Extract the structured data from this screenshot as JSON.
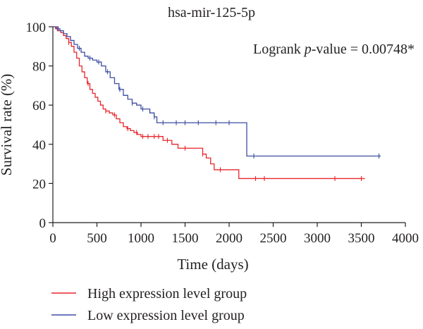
{
  "chart_data": {
    "type": "line",
    "title": "hsa-mir-125-5p",
    "xlabel": "Time (days)",
    "ylabel": "Survival rate (%)",
    "xlim": [
      0,
      4000
    ],
    "ylim": [
      0,
      100
    ],
    "xticks": [
      "0",
      "500",
      "1000",
      "1500",
      "2000",
      "2500",
      "3000",
      "3500",
      "4000"
    ],
    "yticks": [
      "0",
      "20",
      "40",
      "60",
      "80",
      "100"
    ],
    "annotation": {
      "prefix": "Logrank ",
      "p": "p",
      "suffix": "-value = 0.00748*"
    },
    "legend_position": "bottom",
    "series": [
      {
        "name": "High expression level group",
        "color": "#e8262b",
        "steps": [
          [
            0,
            100
          ],
          [
            30,
            99
          ],
          [
            60,
            98
          ],
          [
            90,
            97
          ],
          [
            120,
            95.5
          ],
          [
            150,
            94
          ],
          [
            180,
            92
          ],
          [
            210,
            90
          ],
          [
            240,
            87
          ],
          [
            270,
            84
          ],
          [
            300,
            80
          ],
          [
            330,
            77
          ],
          [
            360,
            74
          ],
          [
            390,
            71
          ],
          [
            420,
            68
          ],
          [
            450,
            66
          ],
          [
            480,
            64
          ],
          [
            510,
            62
          ],
          [
            540,
            60
          ],
          [
            570,
            58
          ],
          [
            600,
            57
          ],
          [
            640,
            56
          ],
          [
            680,
            55
          ],
          [
            720,
            53
          ],
          [
            760,
            51
          ],
          [
            800,
            49
          ],
          [
            840,
            48
          ],
          [
            880,
            47
          ],
          [
            920,
            46
          ],
          [
            960,
            45
          ],
          [
            1000,
            44
          ],
          [
            1250,
            42
          ],
          [
            1350,
            40
          ],
          [
            1420,
            38
          ],
          [
            1700,
            35
          ],
          [
            1740,
            33
          ],
          [
            1790,
            30
          ],
          [
            1830,
            27
          ],
          [
            2110,
            22.5
          ],
          [
            3540,
            22.5
          ]
        ],
        "censor": [
          50,
          180,
          400,
          600,
          700,
          850,
          950,
          1020,
          1080,
          1150,
          1200,
          1300,
          1500,
          1700,
          1900,
          2300,
          2400,
          3200,
          3500
        ]
      },
      {
        "name": "Low expression level group",
        "color": "#3b4ea1",
        "steps": [
          [
            0,
            100
          ],
          [
            40,
            99
          ],
          [
            80,
            98
          ],
          [
            120,
            96.5
          ],
          [
            160,
            95
          ],
          [
            200,
            93
          ],
          [
            240,
            91
          ],
          [
            280,
            89
          ],
          [
            320,
            87
          ],
          [
            360,
            85
          ],
          [
            400,
            84
          ],
          [
            450,
            83
          ],
          [
            500,
            82
          ],
          [
            550,
            80
          ],
          [
            600,
            77
          ],
          [
            650,
            74
          ],
          [
            700,
            71
          ],
          [
            750,
            68
          ],
          [
            800,
            65
          ],
          [
            850,
            63
          ],
          [
            900,
            61
          ],
          [
            950,
            60
          ],
          [
            1000,
            58
          ],
          [
            1100,
            56
          ],
          [
            1150,
            54
          ],
          [
            1180,
            51
          ],
          [
            2200,
            34
          ],
          [
            3720,
            34
          ]
        ],
        "censor": [
          60,
          300,
          420,
          520,
          620,
          760,
          900,
          1020,
          1150,
          1250,
          1400,
          1500,
          1650,
          1850,
          2000,
          2280,
          3700
        ]
      }
    ]
  }
}
